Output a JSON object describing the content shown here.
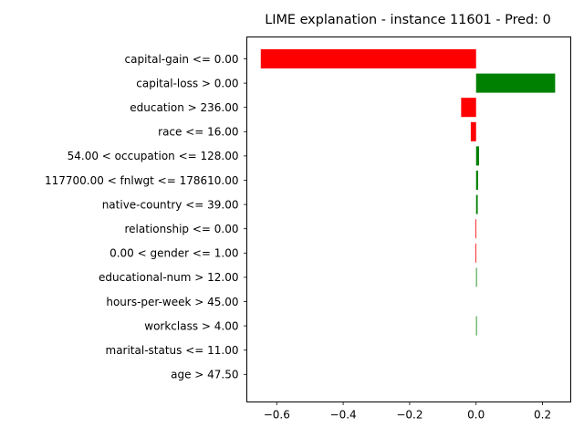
{
  "chart_data": {
    "type": "bar",
    "orientation": "horizontal",
    "title": "LIME explanation - instance 11601 - Pred: 0",
    "xlabel": "",
    "ylabel": "",
    "xlim": [
      -0.69,
      0.285
    ],
    "xticks": [
      -0.6,
      -0.4,
      -0.2,
      0.0,
      0.2
    ],
    "xtick_labels": [
      "−0.6",
      "−0.4",
      "−0.2",
      "0.0",
      "0.2"
    ],
    "grid": false,
    "positive_color": "#008000",
    "negative_color": "#ff0000",
    "categories": [
      "capital-gain <= 0.00",
      "capital-loss > 0.00",
      "education > 236.00",
      "race <= 16.00",
      "54.00 < occupation <= 128.00",
      "117700.00 < fnlwgt <= 178610.00",
      "native-country <= 39.00",
      "relationship <= 0.00",
      "0.00 < gender <= 1.00",
      "educational-num > 12.00",
      "hours-per-week > 45.00",
      "workclass > 4.00",
      "marital-status <= 11.00",
      "age > 47.50"
    ],
    "values": [
      -0.648,
      0.238,
      -0.045,
      -0.016,
      0.009,
      0.006,
      0.005,
      -0.002,
      -0.002,
      0.001,
      0.0,
      0.001,
      0.0,
      0.0
    ]
  }
}
